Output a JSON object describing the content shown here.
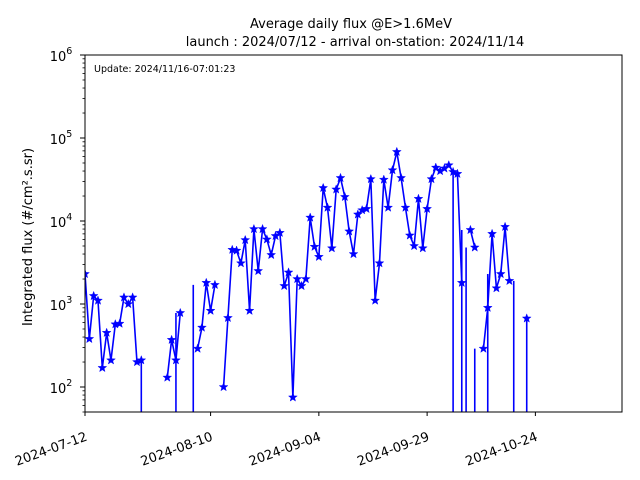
{
  "chart_data": {
    "type": "line",
    "title": "Average daily flux @E>1.6MeV",
    "subtitle": "launch : 2024/07/12 - arrival on-station: 2024/11/14",
    "ylabel": "Integrated flux (#/cm².s.sr)",
    "xlabel": "",
    "annotation": "Update: 2024/11/16-07:01:23",
    "y_scale": "log",
    "ylim": [
      50,
      1000000
    ],
    "xlim": [
      "2024-07-12",
      "2024-11-13"
    ],
    "x_ticks": [
      "2024-07-12",
      "2024-08-10",
      "2024-09-04",
      "2024-09-29",
      "2024-10-24"
    ],
    "y_ticks": [
      {
        "value": 100,
        "base": "10",
        "exp": "2"
      },
      {
        "value": 1000,
        "base": "10",
        "exp": "3"
      },
      {
        "value": 10000,
        "base": "10",
        "exp": "4"
      },
      {
        "value": 100000,
        "base": "10",
        "exp": "5"
      },
      {
        "value": 1000000,
        "base": "10",
        "exp": "6"
      }
    ],
    "grid": false,
    "color": "#0000ff",
    "marker": "star",
    "series": [
      {
        "x": [
          "2024-07-12",
          "2024-07-13",
          "2024-07-14",
          "2024-07-15",
          "2024-07-16",
          "2024-07-17",
          "2024-07-18",
          "2024-07-19",
          "2024-07-20",
          "2024-07-21",
          "2024-07-22",
          "2024-07-23",
          "2024-07-24",
          "2024-07-25",
          "2024-07-26",
          "2024-07-27",
          "2024-07-28",
          "2024-07-29",
          "2024-07-30",
          "2024-07-31",
          "2024-08-01",
          "2024-08-02",
          "2024-08-03",
          "2024-08-04",
          "2024-08-05",
          "2024-08-06",
          "2024-08-07",
          "2024-08-08",
          "2024-08-09",
          "2024-08-10",
          "2024-08-11",
          "2024-08-12",
          "2024-08-13",
          "2024-08-14",
          "2024-08-15",
          "2024-08-16",
          "2024-08-17",
          "2024-08-18",
          "2024-08-19",
          "2024-08-20",
          "2024-08-21",
          "2024-08-22",
          "2024-08-23",
          "2024-08-24",
          "2024-08-25",
          "2024-08-26",
          "2024-08-27",
          "2024-08-28",
          "2024-08-29",
          "2024-08-30",
          "2024-08-31",
          "2024-09-01",
          "2024-09-02",
          "2024-09-03",
          "2024-09-04",
          "2024-09-05",
          "2024-09-06",
          "2024-09-07",
          "2024-09-08",
          "2024-09-09",
          "2024-09-10",
          "2024-09-11",
          "2024-09-12",
          "2024-09-13",
          "2024-09-14",
          "2024-09-15",
          "2024-09-16",
          "2024-09-17",
          "2024-09-18",
          "2024-09-19",
          "2024-09-20",
          "2024-09-21",
          "2024-09-22",
          "2024-09-23",
          "2024-09-24",
          "2024-09-25",
          "2024-09-26",
          "2024-09-27",
          "2024-09-28",
          "2024-09-29",
          "2024-09-30",
          "2024-10-01",
          "2024-10-02",
          "2024-10-03",
          "2024-10-04",
          "2024-10-05",
          "2024-10-06",
          "2024-10-07",
          "2024-10-08",
          "2024-10-09",
          "2024-10-10",
          "2024-10-11",
          "2024-10-12",
          "2024-10-13",
          "2024-10-14",
          "2024-10-15",
          "2024-10-16",
          "2024-10-17",
          "2024-10-18",
          "2024-10-19"
        ],
        "values": [
          2300,
          380,
          1250,
          1100,
          170,
          450,
          210,
          570,
          580,
          1200,
          1000,
          1200,
          200,
          210,
          null,
          null,
          null,
          null,
          null,
          130,
          370,
          210,
          780,
          null,
          null,
          null,
          290,
          520,
          1800,
          830,
          1700,
          null,
          100,
          680,
          4500,
          4400,
          3100,
          5900,
          830,
          8000,
          2500,
          8000,
          6000,
          3900,
          6600,
          7200,
          1650,
          2400,
          75,
          2000,
          1650,
          2000,
          11000,
          4900,
          3700,
          25000,
          14500,
          4700,
          24000,
          33000,
          19500,
          7500,
          4000,
          12000,
          13500,
          14000,
          32000,
          1100,
          3100,
          31500,
          14500,
          41000,
          68000,
          33000,
          14500,
          6700,
          5000,
          18500,
          4700,
          14000,
          32000,
          44000,
          40000,
          43000,
          47000,
          39000,
          37000,
          1800,
          null,
          7800,
          4800,
          null,
          290,
          900,
          7000,
          1550,
          2300,
          8500,
          1900,
          null
        ]
      }
    ],
    "trailing_point": {
      "x": "2024-10-22",
      "value": 670
    },
    "drop_lines": [
      {
        "x": "2024-07-25",
        "from": 210
      },
      {
        "x": "2024-08-02",
        "from": 780
      },
      {
        "x": "2024-08-06",
        "from": 1700
      },
      {
        "x": "2024-10-05",
        "from": 37000
      },
      {
        "x": "2024-10-07",
        "from": 7800
      },
      {
        "x": "2024-10-08",
        "from": 4800
      },
      {
        "x": "2024-10-10",
        "from": 290
      },
      {
        "x": "2024-10-13",
        "from": 2300
      },
      {
        "x": "2024-10-19",
        "from": 1900
      },
      {
        "x": "2024-10-22",
        "from": 670
      }
    ]
  }
}
